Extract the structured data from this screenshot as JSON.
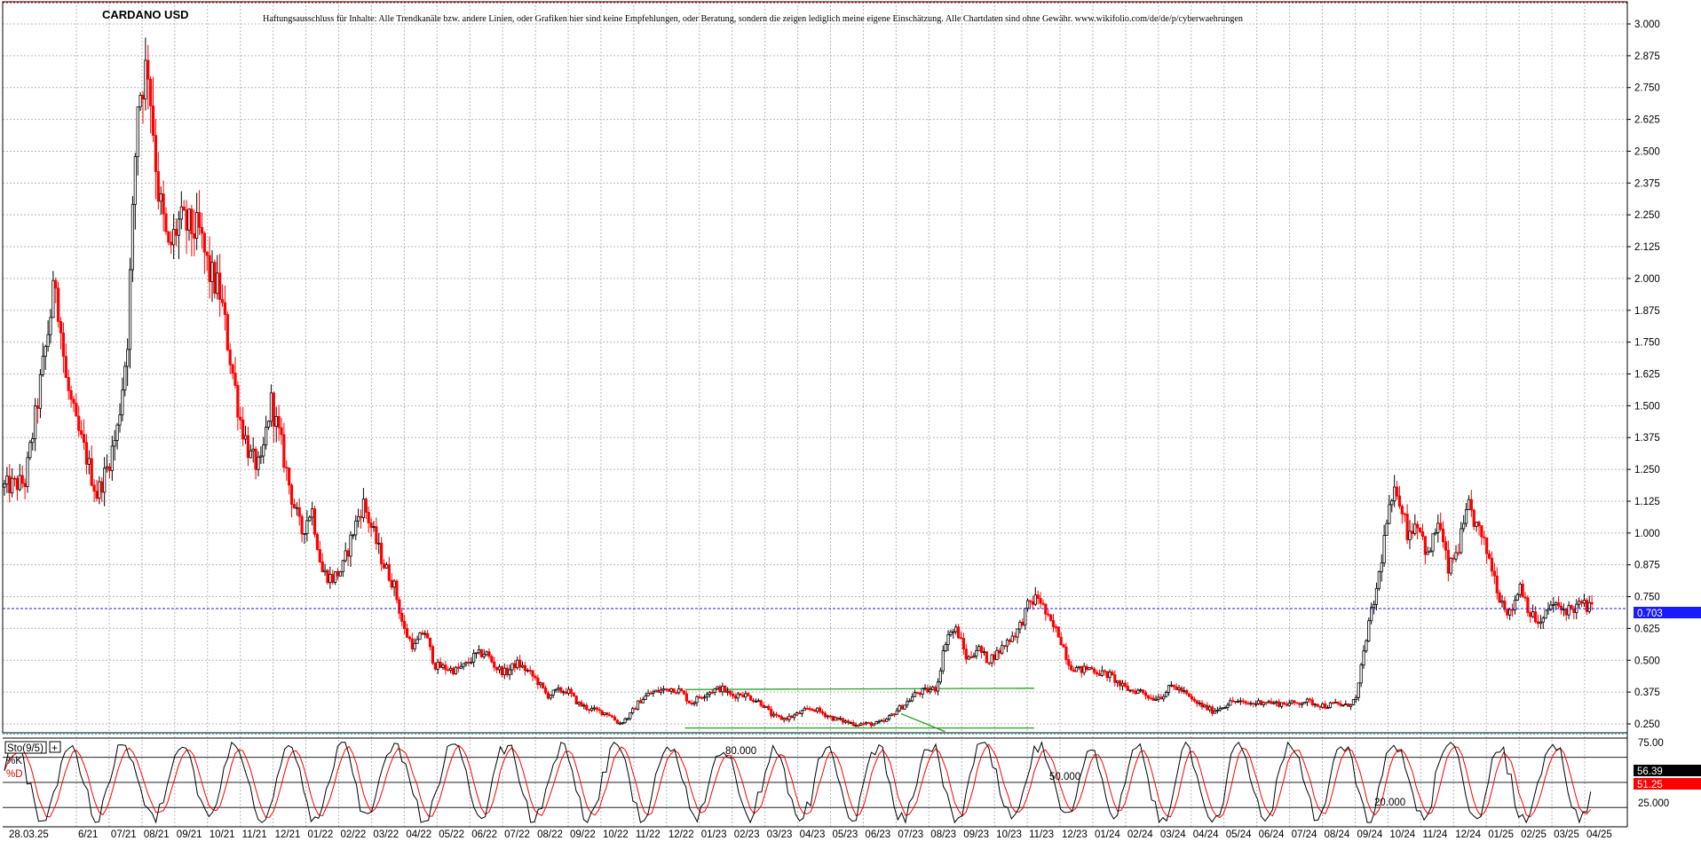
{
  "chart_data": {
    "type": "candlestick",
    "title": "CARDANO USD",
    "disclaimer": "Haftungsausschluss für Inhalte: Alle Trendkanäle bzw. andere Linien, oder Grafiken hier sind keine Empfehlungen, oder Beratung, sondern die zeigen lediglich meine eigene Einschätzung. Alle Chartdaten sind ohne Gewähr. www.wikifolio.com/de/de/p/cyberwaehrungen",
    "ylim": [
      0.18,
      3.1
    ],
    "yticks": [
      "3.000",
      "2.875",
      "2.750",
      "2.625",
      "2.500",
      "2.375",
      "2.250",
      "2.125",
      "2.000",
      "1.875",
      "1.750",
      "1.625",
      "1.500",
      "1.375",
      "1.250",
      "1.125",
      "1.000",
      "0.875",
      "0.750",
      "0.625",
      "0.500",
      "0.375",
      "0.250"
    ],
    "xticks": [
      "28.03.25",
      "6/21",
      "07/21",
      "08/21",
      "09/21",
      "10/21",
      "11/21",
      "12/21",
      "01/22",
      "02/22",
      "03/22",
      "04/22",
      "05/22",
      "06/22",
      "07/22",
      "08/22",
      "09/22",
      "10/22",
      "11/22",
      "12/22",
      "01/23",
      "02/23",
      "03/23",
      "04/23",
      "05/23",
      "06/23",
      "07/23",
      "08/23",
      "09/23",
      "10/23",
      "11/23",
      "12/23",
      "01/24",
      "02/24",
      "03/24",
      "04/24",
      "05/24",
      "06/24",
      "07/24",
      "08/24",
      "09/24",
      "10/24",
      "11/24",
      "12/24",
      "01/25",
      "02/25",
      "03/25",
      "04/25"
    ],
    "last_price": "0.703",
    "last_price_value": 0.703,
    "price_path": [
      [
        0,
        1.18
      ],
      [
        2,
        1.2
      ],
      [
        3,
        1.45
      ],
      [
        4,
        1.72
      ],
      [
        5,
        2.0
      ],
      [
        6,
        1.6
      ],
      [
        7,
        1.42
      ],
      [
        8,
        1.3
      ],
      [
        9,
        1.15
      ],
      [
        10,
        1.25
      ],
      [
        11,
        1.4
      ],
      [
        12,
        1.75
      ],
      [
        13,
        2.7
      ],
      [
        14,
        2.85
      ],
      [
        15,
        2.35
      ],
      [
        16,
        2.1
      ],
      [
        17,
        2.22
      ],
      [
        18,
        2.2
      ],
      [
        19,
        2.18
      ],
      [
        20,
        2.02
      ],
      [
        21,
        1.95
      ],
      [
        22,
        1.7
      ],
      [
        23,
        1.45
      ],
      [
        24,
        1.3
      ],
      [
        25,
        1.25
      ],
      [
        26,
        1.52
      ],
      [
        27,
        1.35
      ],
      [
        28,
        1.15
      ],
      [
        29,
        1.0
      ],
      [
        30,
        1.1
      ],
      [
        31,
        0.85
      ],
      [
        32,
        0.82
      ],
      [
        33,
        0.86
      ],
      [
        34,
        1.0
      ],
      [
        35,
        1.12
      ],
      [
        36,
        1.0
      ],
      [
        37,
        0.88
      ],
      [
        38,
        0.8
      ],
      [
        39,
        0.62
      ],
      [
        40,
        0.55
      ],
      [
        41,
        0.62
      ],
      [
        42,
        0.48
      ],
      [
        43,
        0.47
      ],
      [
        44,
        0.46
      ],
      [
        45,
        0.48
      ],
      [
        46,
        0.52
      ],
      [
        47,
        0.53
      ],
      [
        48,
        0.47
      ],
      [
        49,
        0.45
      ],
      [
        50,
        0.49
      ],
      [
        51,
        0.46
      ],
      [
        52,
        0.42
      ],
      [
        53,
        0.36
      ],
      [
        54,
        0.38
      ],
      [
        55,
        0.38
      ],
      [
        56,
        0.33
      ],
      [
        57,
        0.31
      ],
      [
        58,
        0.3
      ],
      [
        59,
        0.29
      ],
      [
        60,
        0.25
      ],
      [
        61,
        0.28
      ],
      [
        62,
        0.34
      ],
      [
        63,
        0.37
      ],
      [
        64,
        0.38
      ],
      [
        65,
        0.39
      ],
      [
        66,
        0.38
      ],
      [
        67,
        0.33
      ],
      [
        68,
        0.36
      ],
      [
        69,
        0.38
      ],
      [
        70,
        0.39
      ],
      [
        71,
        0.36
      ],
      [
        72,
        0.37
      ],
      [
        73,
        0.35
      ],
      [
        74,
        0.33
      ],
      [
        75,
        0.28
      ],
      [
        76,
        0.27
      ],
      [
        77,
        0.28
      ],
      [
        78,
        0.3
      ],
      [
        79,
        0.31
      ],
      [
        80,
        0.29
      ],
      [
        81,
        0.27
      ],
      [
        82,
        0.26
      ],
      [
        83,
        0.25
      ],
      [
        84,
        0.25
      ],
      [
        85,
        0.25
      ],
      [
        86,
        0.26
      ],
      [
        87,
        0.3
      ],
      [
        88,
        0.33
      ],
      [
        89,
        0.37
      ],
      [
        90,
        0.38
      ],
      [
        91,
        0.39
      ],
      [
        92,
        0.6
      ],
      [
        93,
        0.62
      ],
      [
        94,
        0.5
      ],
      [
        95,
        0.55
      ],
      [
        96,
        0.5
      ],
      [
        97,
        0.53
      ],
      [
        98,
        0.58
      ],
      [
        99,
        0.62
      ],
      [
        100,
        0.72
      ],
      [
        101,
        0.75
      ],
      [
        102,
        0.65
      ],
      [
        103,
        0.6
      ],
      [
        104,
        0.48
      ],
      [
        105,
        0.46
      ],
      [
        106,
        0.47
      ],
      [
        107,
        0.45
      ],
      [
        108,
        0.44
      ],
      [
        109,
        0.4
      ],
      [
        110,
        0.38
      ],
      [
        111,
        0.38
      ],
      [
        112,
        0.35
      ],
      [
        113,
        0.36
      ],
      [
        114,
        0.4
      ],
      [
        115,
        0.38
      ],
      [
        116,
        0.34
      ],
      [
        117,
        0.32
      ],
      [
        118,
        0.3
      ],
      [
        119,
        0.32
      ],
      [
        120,
        0.34
      ],
      [
        121,
        0.33
      ],
      [
        122,
        0.33
      ],
      [
        123,
        0.34
      ],
      [
        124,
        0.33
      ],
      [
        125,
        0.33
      ],
      [
        126,
        0.33
      ],
      [
        127,
        0.34
      ],
      [
        128,
        0.33
      ],
      [
        129,
        0.32
      ],
      [
        130,
        0.33
      ],
      [
        131,
        0.32
      ],
      [
        132,
        0.35
      ],
      [
        133,
        0.6
      ],
      [
        134,
        0.78
      ],
      [
        135,
        1.05
      ],
      [
        136,
        1.18
      ],
      [
        137,
        1.0
      ],
      [
        138,
        1.05
      ],
      [
        139,
        0.9
      ],
      [
        140,
        1.05
      ],
      [
        141,
        0.85
      ],
      [
        142,
        0.95
      ],
      [
        143,
        1.1
      ],
      [
        144,
        1.0
      ],
      [
        145,
        0.9
      ],
      [
        146,
        0.75
      ],
      [
        147,
        0.68
      ],
      [
        148,
        0.8
      ],
      [
        149,
        0.68
      ],
      [
        150,
        0.64
      ],
      [
        151,
        0.72
      ],
      [
        152,
        0.7
      ],
      [
        153,
        0.7
      ],
      [
        154,
        0.72
      ],
      [
        155,
        0.703
      ]
    ],
    "trendlines": [
      {
        "color": "#22a022",
        "points": [
          [
            0.42,
            0.385
          ],
          [
            0.635,
            0.39
          ]
        ]
      },
      {
        "color": "#22a022",
        "points": [
          [
            0.42,
            0.234
          ],
          [
            0.635,
            0.234
          ]
        ]
      },
      {
        "color": "#22a022",
        "points": [
          [
            0.553,
            0.29
          ],
          [
            0.58,
            0.22
          ]
        ]
      }
    ],
    "stochastic": {
      "name": "Sto(9/5)",
      "k_label": "%K",
      "d_label": "%D",
      "k_value": "56.39",
      "d_value": "51.25",
      "levels": [
        "80.000",
        "50.000",
        "20.000"
      ],
      "level_values": [
        80,
        50,
        20
      ],
      "axis_label": "25.000",
      "axis_values": [
        "75.00",
        "25.000"
      ]
    }
  }
}
